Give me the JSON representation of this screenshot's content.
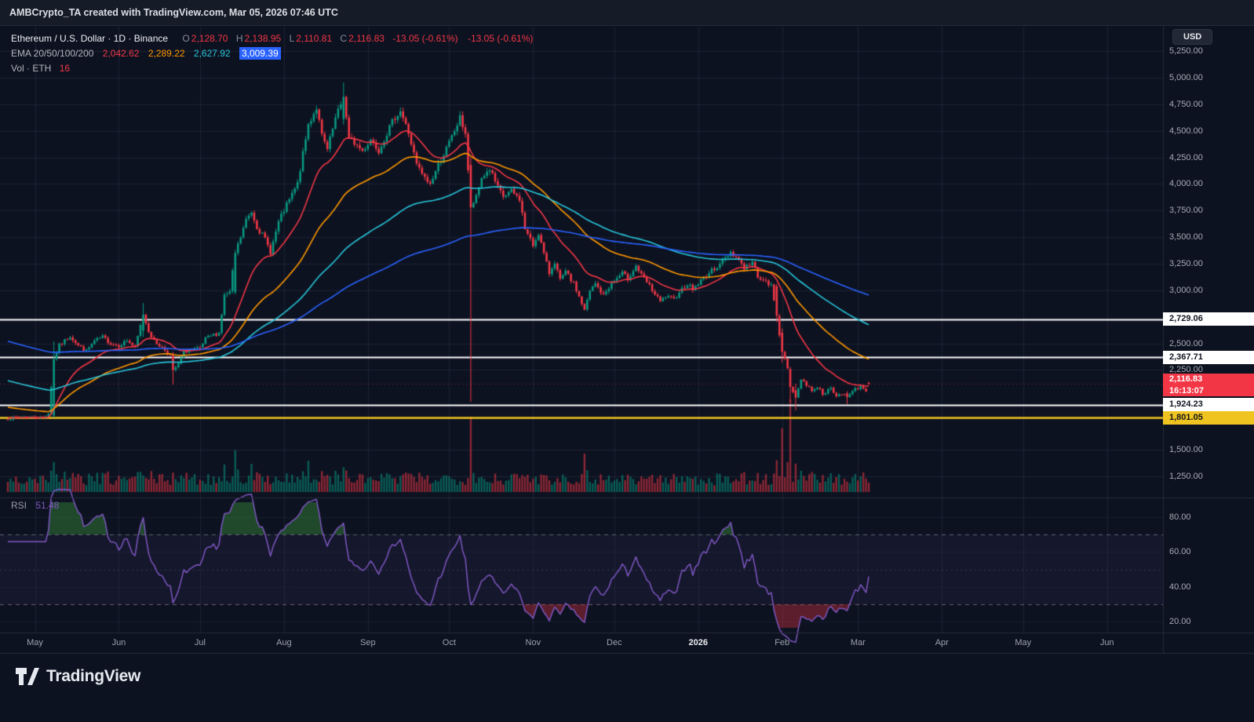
{
  "attribution": {
    "text": "AMBCrypto_TA created with TradingView.com, Mar 05, 2026 07:46 UTC"
  },
  "currency_button": {
    "label": "USD"
  },
  "watermark": {
    "label": "TradingView"
  },
  "legend": {
    "symbol_line": "Ethereum / U.S. Dollar · 1D · Binance",
    "o_label": "O",
    "h_label": "H",
    "l_label": "L",
    "c_label": "C",
    "open": "2,128.70",
    "high": "2,138.95",
    "low": "2,110.81",
    "close": "2,116.83",
    "change": "-13.05 (-0.61%)",
    "change_secondary": "-13.05 (-0.61%)",
    "ohlc_color": "#f23645",
    "ema_label": "EMA 20/50/100/200",
    "ema_values": [
      {
        "text": "2,042.62",
        "color": "#f23645"
      },
      {
        "text": "2,289.22",
        "color": "#ff9800"
      },
      {
        "text": "2,627.92",
        "color": "#26c6da"
      },
      {
        "text": "3,009.39",
        "color": "#ffffff",
        "background": "#2962ff"
      }
    ],
    "vol_label": "Vol · ETH",
    "vol_value": "16",
    "vol_color": "#f23645",
    "rsi_label": "RSI",
    "rsi_value": "51.48",
    "rsi_color": "#7e57c2"
  },
  "chart_data": {
    "type": "candlestick+volume+rsi",
    "title": "Ethereum / U.S. Dollar · 1D · Binance",
    "y_axis": {
      "min": 1100,
      "max": 5400,
      "grid": true
    },
    "price_ticks": [
      {
        "value": 5250,
        "label": "5,250.00"
      },
      {
        "value": 5000,
        "label": "5,000.00"
      },
      {
        "value": 4750,
        "label": "4,750.00"
      },
      {
        "value": 4500,
        "label": "4,500.00"
      },
      {
        "value": 4250,
        "label": "4,250.00"
      },
      {
        "value": 4000,
        "label": "4,000.00"
      },
      {
        "value": 3750,
        "label": "3,750.00"
      },
      {
        "value": 3500,
        "label": "3,500.00"
      },
      {
        "value": 3250,
        "label": "3,250.00"
      },
      {
        "value": 3000,
        "label": "3,000.00"
      },
      {
        "value": 2500,
        "label": "2,500.00"
      },
      {
        "value": 2250,
        "label": "2,250.00"
      },
      {
        "value": 1500,
        "label": "1,500.00"
      },
      {
        "value": 1250,
        "label": "1,250.00"
      }
    ],
    "levels": [
      {
        "price": 2729.06,
        "label": "2,729.06",
        "color": "#ffffff",
        "label_bg": "#ffffff",
        "label_fg": "#10141f",
        "width": 2
      },
      {
        "price": 2367.71,
        "label": "2,367.71",
        "color": "#ffffff",
        "label_bg": "#ffffff",
        "label_fg": "#10141f",
        "width": 2
      },
      {
        "price": 1924.23,
        "label": "1,924.23",
        "color": "#ffffff",
        "label_bg": "#ffffff",
        "label_fg": "#10141f",
        "width": 2
      },
      {
        "price": 1801.05,
        "label": "1,801.05",
        "color": "#f0c420",
        "label_bg": "#f0c420",
        "label_fg": "#10141f",
        "width": 2.5
      }
    ],
    "current_price": {
      "price": 2116.83,
      "label": "2,116.83",
      "countdown": "16:13:07",
      "background": "#f23645",
      "text_color": "#ffffff"
    },
    "last_candle": {
      "open": 2128.7,
      "high": 2138.95,
      "low": 2110.81,
      "close": 2116.83,
      "change": -13.05,
      "change_pct": -0.61
    },
    "candle_up_color": "#089981",
    "candle_down_color": "#f23645",
    "days_total": 319,
    "close_waypoints": [
      [
        0,
        1790
      ],
      [
        6,
        1810
      ],
      [
        13,
        1800
      ],
      [
        15,
        1840
      ],
      [
        17,
        2350
      ],
      [
        19,
        2480
      ],
      [
        23,
        2570
      ],
      [
        26,
        2480
      ],
      [
        29,
        2430
      ],
      [
        32,
        2520
      ],
      [
        35,
        2560
      ],
      [
        38,
        2500
      ],
      [
        41,
        2480
      ],
      [
        44,
        2530
      ],
      [
        47,
        2460
      ],
      [
        50,
        2770
      ],
      [
        52,
        2620
      ],
      [
        54,
        2520
      ],
      [
        57,
        2460
      ],
      [
        60,
        2390
      ],
      [
        61,
        2250
      ],
      [
        63,
        2300
      ],
      [
        65,
        2420
      ],
      [
        68,
        2440
      ],
      [
        71,
        2450
      ],
      [
        73,
        2540
      ],
      [
        75,
        2570
      ],
      [
        78,
        2600
      ],
      [
        80,
        2950
      ],
      [
        82,
        2980
      ],
      [
        84,
        3350
      ],
      [
        86,
        3500
      ],
      [
        88,
        3660
      ],
      [
        90,
        3740
      ],
      [
        92,
        3600
      ],
      [
        95,
        3480
      ],
      [
        97,
        3360
      ],
      [
        100,
        3640
      ],
      [
        102,
        3750
      ],
      [
        104,
        3850
      ],
      [
        107,
        4000
      ],
      [
        109,
        4280
      ],
      [
        111,
        4560
      ],
      [
        114,
        4720
      ],
      [
        116,
        4450
      ],
      [
        118,
        4320
      ],
      [
        121,
        4610
      ],
      [
        124,
        4820
      ],
      [
        126,
        4420
      ],
      [
        128,
        4390
      ],
      [
        131,
        4310
      ],
      [
        134,
        4420
      ],
      [
        137,
        4320
      ],
      [
        140,
        4480
      ],
      [
        143,
        4630
      ],
      [
        145,
        4690
      ],
      [
        148,
        4480
      ],
      [
        151,
        4180
      ],
      [
        154,
        4050
      ],
      [
        156,
        4000
      ],
      [
        159,
        4180
      ],
      [
        162,
        4330
      ],
      [
        165,
        4500
      ],
      [
        167,
        4620
      ],
      [
        169,
        4480
      ],
      [
        171,
        3780
      ],
      [
        173,
        3870
      ],
      [
        175,
        4060
      ],
      [
        178,
        4140
      ],
      [
        181,
        3960
      ],
      [
        183,
        3880
      ],
      [
        186,
        3930
      ],
      [
        189,
        3860
      ],
      [
        191,
        3580
      ],
      [
        194,
        3420
      ],
      [
        196,
        3540
      ],
      [
        198,
        3340
      ],
      [
        200,
        3160
      ],
      [
        202,
        3270
      ],
      [
        204,
        3090
      ],
      [
        206,
        3170
      ],
      [
        209,
        3060
      ],
      [
        211,
        2940
      ],
      [
        213,
        2810
      ],
      [
        215,
        2990
      ],
      [
        217,
        3060
      ],
      [
        220,
        2950
      ],
      [
        222,
        3030
      ],
      [
        224,
        3090
      ],
      [
        227,
        3160
      ],
      [
        229,
        3110
      ],
      [
        232,
        3230
      ],
      [
        234,
        3140
      ],
      [
        237,
        3040
      ],
      [
        239,
        2960
      ],
      [
        241,
        2890
      ],
      [
        243,
        2940
      ],
      [
        246,
        2910
      ],
      [
        248,
        2990
      ],
      [
        251,
        3060
      ],
      [
        253,
        3010
      ],
      [
        256,
        3090
      ],
      [
        259,
        3160
      ],
      [
        262,
        3230
      ],
      [
        265,
        3300
      ],
      [
        267,
        3360
      ],
      [
        270,
        3290
      ],
      [
        272,
        3210
      ],
      [
        275,
        3260
      ],
      [
        277,
        3140
      ],
      [
        279,
        3090
      ],
      [
        282,
        3040
      ],
      [
        284,
        2760
      ],
      [
        286,
        2420
      ],
      [
        288,
        2260
      ],
      [
        289,
        2090
      ],
      [
        291,
        1990
      ],
      [
        293,
        2160
      ],
      [
        295,
        2110
      ],
      [
        297,
        2060
      ],
      [
        299,
        2090
      ],
      [
        301,
        2030
      ],
      [
        304,
        2070
      ],
      [
        306,
        2000
      ],
      [
        308,
        2030
      ],
      [
        310,
        1995
      ],
      [
        313,
        2070
      ],
      [
        315,
        2095
      ],
      [
        317,
        2060
      ],
      [
        318,
        2116.83
      ]
    ],
    "candle_overrides": {
      "17": [
        1820,
        2520,
        1800,
        2350
      ],
      "50": [
        2620,
        2880,
        2560,
        2770
      ],
      "61": [
        2390,
        2420,
        2110,
        2250
      ],
      "84": [
        2980,
        3380,
        2960,
        3350
      ],
      "124": [
        4610,
        4955,
        4560,
        4820
      ],
      "171": [
        4180,
        4250,
        1950,
        3780
      ],
      "284": [
        3040,
        3060,
        2700,
        2760
      ],
      "286": [
        2600,
        2640,
        2320,
        2420
      ],
      "289": [
        2260,
        2280,
        1950,
        2090
      ],
      "291": [
        2060,
        2120,
        1870,
        1990
      ],
      "310": [
        2030,
        2050,
        1930,
        1995
      ],
      "318": [
        2128.7,
        2138.95,
        2110.81,
        2116.83
      ]
    },
    "volume_spikes": {
      "17": 1.2,
      "84": 2.2,
      "85": 2.0,
      "90": 1.6,
      "111": 1.5,
      "124": 1.6,
      "171": 3.2,
      "172": 2.0,
      "213": 2.2,
      "284": 2.0,
      "286": 2.6,
      "288": 2.4,
      "289": 3.2,
      "291": 2.2,
      "293": 1.8
    },
    "ema_periods": [
      20,
      50,
      100,
      200
    ],
    "ema_colors": {
      "20": "#f23645",
      "50": "#ff9800",
      "100": "#26c6da",
      "200": "#2962ff"
    },
    "ema_seeds": {
      "20": 1800,
      "50": 1900,
      "100": 2150,
      "200": 2520
    },
    "ema_current": {
      "20": 2042.62,
      "50": 2289.22,
      "100": 2627.92
    },
    "rsi": {
      "period": 14,
      "current": 51.48,
      "line_color": "#7e57c2",
      "overbought": 70,
      "oversold": 30,
      "midline": 50,
      "ticks": [
        {
          "value": 80,
          "label": "80.00"
        },
        {
          "value": 60,
          "label": "60.00"
        },
        {
          "value": 40,
          "label": "40.00"
        },
        {
          "value": 20,
          "label": "20.00"
        }
      ]
    },
    "x_axis_labels": [
      {
        "label": "May",
        "day": 10
      },
      {
        "label": "Jun",
        "day": 41
      },
      {
        "label": "Jul",
        "day": 71
      },
      {
        "label": "Aug",
        "day": 102
      },
      {
        "label": "Sep",
        "day": 133
      },
      {
        "label": "Oct",
        "day": 163
      },
      {
        "label": "Nov",
        "day": 194
      },
      {
        "label": "Dec",
        "day": 224
      },
      {
        "label": "2026",
        "day": 255,
        "emphasis": true
      },
      {
        "label": "Feb",
        "day": 286
      },
      {
        "label": "Mar",
        "day": 314
      },
      {
        "label": "Apr",
        "day": 345
      },
      {
        "label": "May",
        "day": 375
      },
      {
        "label": "Jun",
        "day": 406
      }
    ]
  },
  "colors": {
    "background": "#0d1220",
    "topbar": "#161b28",
    "grid": "#222a3c",
    "separator": "#262b3a",
    "axis_text": "#a7abb6",
    "up": "#089981",
    "down": "#f23645",
    "level_white": "#ffffff",
    "level_yellow": "#f0c420",
    "rsi_purple": "#7e57c2"
  }
}
